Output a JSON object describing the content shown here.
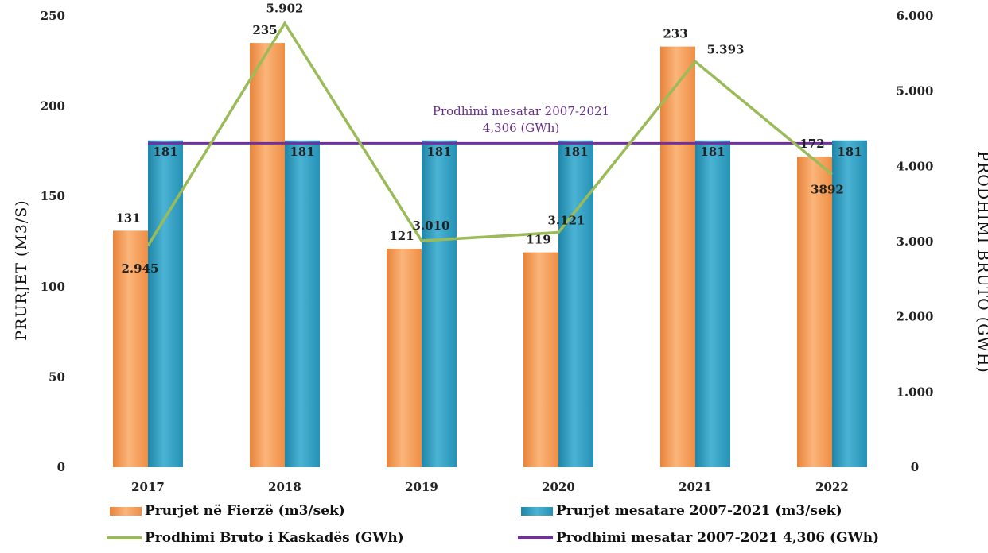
{
  "chart_data": {
    "type": "bar",
    "categories": [
      "2017",
      "2018",
      "2019",
      "2020",
      "2021",
      "2022"
    ],
    "series": [
      {
        "name": "Prurjet në Fierzë (m3/sek)",
        "type": "bar",
        "axis": "left",
        "values": [
          131,
          235,
          121,
          119,
          233,
          172
        ],
        "color": "#f5a05a"
      },
      {
        "name": "Prurjet mesatare 2007-2021 (m3/sek)",
        "type": "bar",
        "axis": "left",
        "values": [
          181,
          181,
          181,
          181,
          181,
          181
        ],
        "color": "#2e9bbd"
      },
      {
        "name": "Prodhimi Bruto i Kaskadës (GWh)",
        "type": "line",
        "axis": "right",
        "values": [
          2945,
          5902,
          3010,
          3121,
          5393,
          3892
        ],
        "color": "#9bbb59",
        "labels": [
          "2.945",
          "5.902",
          "3.010",
          "3.121",
          "5.393",
          "3892"
        ]
      },
      {
        "name": "Prodhimi mesatar 2007-2021 4,306 (GWh)",
        "type": "line",
        "axis": "right",
        "values": [
          4306,
          4306,
          4306,
          4306,
          4306,
          4306
        ],
        "color": "#7030a0"
      }
    ],
    "bar_labels": {
      "fierze": [
        "131",
        "235",
        "121",
        "119",
        "233",
        "172"
      ],
      "mesatare": [
        "181",
        "181",
        "181",
        "181",
        "181",
        "181"
      ]
    },
    "y_left": {
      "label": "PRURJET (M3/S)",
      "ylim": [
        0,
        250
      ],
      "ticks": [
        "0",
        "50",
        "100",
        "150",
        "200",
        "250"
      ]
    },
    "y_right": {
      "label": "PRODHIMI BRUTO (GWH)",
      "ylim": [
        0,
        6000
      ],
      "ticks": [
        "0",
        "1.000",
        "2.000",
        "3.000",
        "4.000",
        "5.000",
        "6.000"
      ]
    },
    "annotation": {
      "line1": "Prodhimi mesatar 2007-2021",
      "line2": "4,306 (GWh)"
    },
    "legend_position": "bottom",
    "grid": false
  }
}
